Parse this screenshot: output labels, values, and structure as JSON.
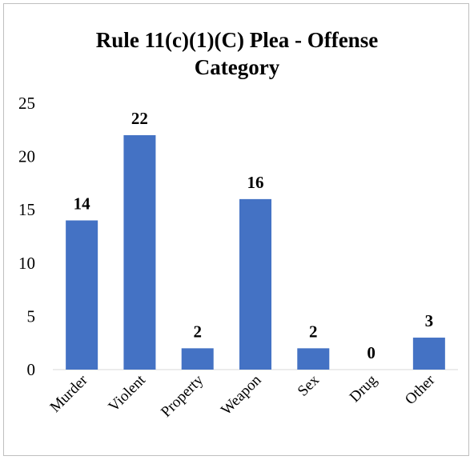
{
  "chart_data": {
    "type": "bar",
    "title_lines": [
      "Rule 11(c)(1)(C) Plea - Offense",
      "Category"
    ],
    "categories": [
      "Murder",
      "Violent",
      "Property",
      "Weapon",
      "Sex",
      "Drug",
      "Other"
    ],
    "values": [
      14,
      22,
      2,
      16,
      2,
      0,
      3
    ],
    "ylim": [
      0,
      25
    ],
    "yticks": [
      0,
      5,
      10,
      15,
      20,
      25
    ],
    "grid": false,
    "legend": "none",
    "xlabel": "",
    "ylabel": "",
    "bar_color": "#4472c4",
    "data_labels": true
  }
}
